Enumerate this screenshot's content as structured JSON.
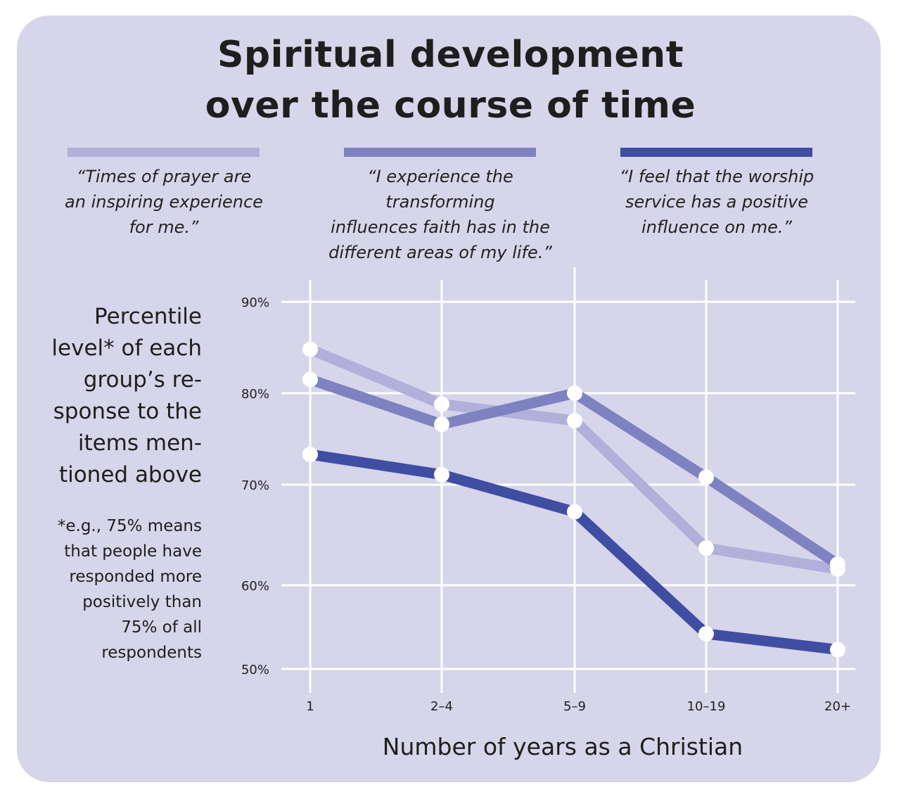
{
  "title_lines": [
    "Spiritual development",
    "over the course of time"
  ],
  "legend": [
    {
      "color": "#b0b0da",
      "lines": [
        "“Times of prayer are",
        "an inspiring experience",
        "for me.”"
      ]
    },
    {
      "color": "#7f82c0",
      "lines": [
        "“I experience the transforming",
        "influences faith has in the",
        "different areas of my life.”"
      ]
    },
    {
      "color": "#3f4ea3",
      "lines": [
        "“I feel that the worship",
        "service has a positive",
        "influence on me.”"
      ]
    }
  ],
  "side_label_lines": [
    "Percentile",
    "level* of each",
    "group’s re-",
    "sponse to the",
    "items men-",
    "tioned above"
  ],
  "footnote_lines": [
    "*e.g., 75% means",
    "that people have",
    "responded more",
    "positively than",
    "75% of all",
    "respondents"
  ],
  "chart_data": {
    "type": "line",
    "title": "Spiritual development over the course of time",
    "xlabel": "Number of years as a Christian",
    "ylabel": "Percentile level* of each group’s response to the items mentioned above",
    "categories": [
      "1",
      "2–4",
      "5–9",
      "10–19",
      "20+"
    ],
    "y_ticks": [
      90,
      80,
      70,
      60,
      50
    ],
    "y_tick_labels": [
      "90%",
      "80%",
      "70%",
      "60%",
      "50%"
    ],
    "ylim": [
      50,
      90
    ],
    "grid": true,
    "legend_position": "top",
    "series": [
      {
        "name": "Times of prayer are an inspiring experience for me.",
        "color": "#b0b0da",
        "values": [
          84.8,
          78.8,
          77.0,
          63.7,
          61.6
        ]
      },
      {
        "name": "I experience the transforming influences faith has in the different areas of my life.",
        "color": "#7f82c0",
        "values": [
          81.5,
          76.6,
          80.0,
          70.8,
          62.1
        ]
      },
      {
        "name": "I feel that the worship service has a positive influence on me.",
        "color": "#3f4ea3",
        "values": [
          73.3,
          71.1,
          67.3,
          54.2,
          52.3
        ]
      }
    ]
  }
}
